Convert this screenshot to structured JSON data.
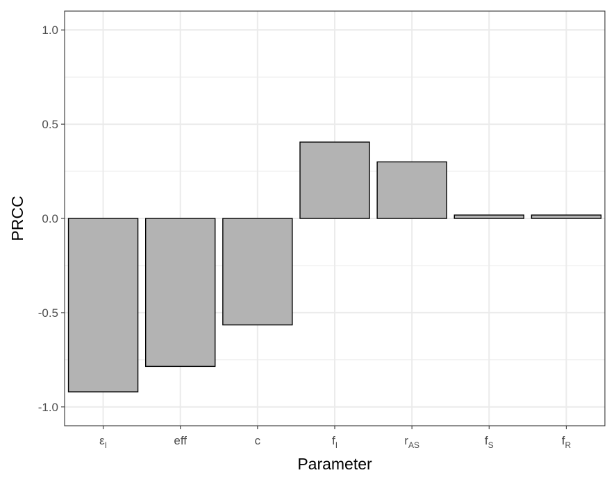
{
  "chart_data": {
    "type": "bar",
    "title": "",
    "xlabel": "Parameter",
    "ylabel": "PRCC",
    "categories": [
      {
        "base": "ε",
        "sub": "I"
      },
      {
        "base": "eff",
        "sub": ""
      },
      {
        "base": "c",
        "sub": ""
      },
      {
        "base": "f",
        "sub": "I"
      },
      {
        "base": "r",
        "sub": "AS"
      },
      {
        "base": "f",
        "sub": "S"
      },
      {
        "base": "f",
        "sub": "R"
      }
    ],
    "values": [
      -0.92,
      -0.785,
      -0.565,
      0.405,
      0.3,
      0.018,
      0.018
    ],
    "ylim": [
      -1.1,
      1.1
    ],
    "yticks": [
      {
        "value": -1.0,
        "label": "-1.0"
      },
      {
        "value": -0.5,
        "label": "-0.5"
      },
      {
        "value": 0.0,
        "label": "0.0"
      },
      {
        "value": 0.5,
        "label": "0.5"
      },
      {
        "value": 1.0,
        "label": "1.0"
      }
    ],
    "grid": true,
    "bar_color": "#b3b3b3",
    "bar_edge_color": "#000000",
    "grid_color": "#ebebeb"
  }
}
